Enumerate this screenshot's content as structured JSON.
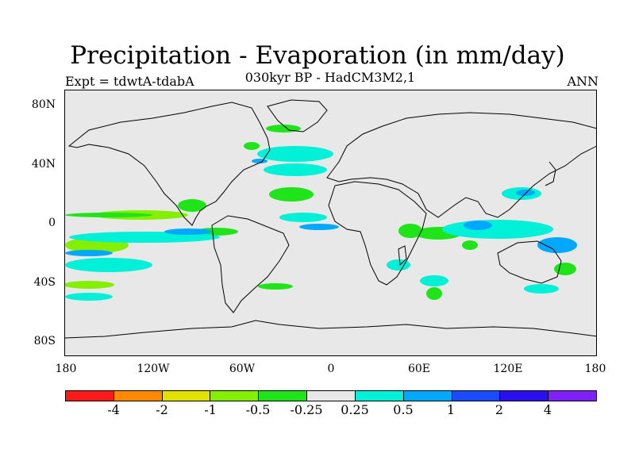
{
  "header": {
    "title": "Precipitation - Evaporation (in mm/day)",
    "subtitle": "030kyr BP - HadCM3M2,1",
    "experiment": "Expt = tdwtA-tdabA",
    "period": "ANN"
  },
  "axes": {
    "y_ticks": [
      "80N",
      "40N",
      "0",
      "40S",
      "80S"
    ],
    "x_ticks": [
      "180",
      "120W",
      "60W",
      "0",
      "60E",
      "120E",
      "180"
    ]
  },
  "colorbar": {
    "colors": [
      "#ff1a1a",
      "#ff8a00",
      "#e2e200",
      "#84f000",
      "#20e41a",
      "#e8e8e8",
      "#00f0d8",
      "#00a8ff",
      "#1a4cff",
      "#2a10f0",
      "#8020f8"
    ],
    "labels": [
      "-4",
      "-2",
      "-1",
      "-0.5",
      "-0.25",
      "0.25",
      "0.5",
      "1",
      "2",
      "4"
    ]
  },
  "map_colors": {
    "background": "#e8e8e8",
    "coast": "#000000"
  }
}
